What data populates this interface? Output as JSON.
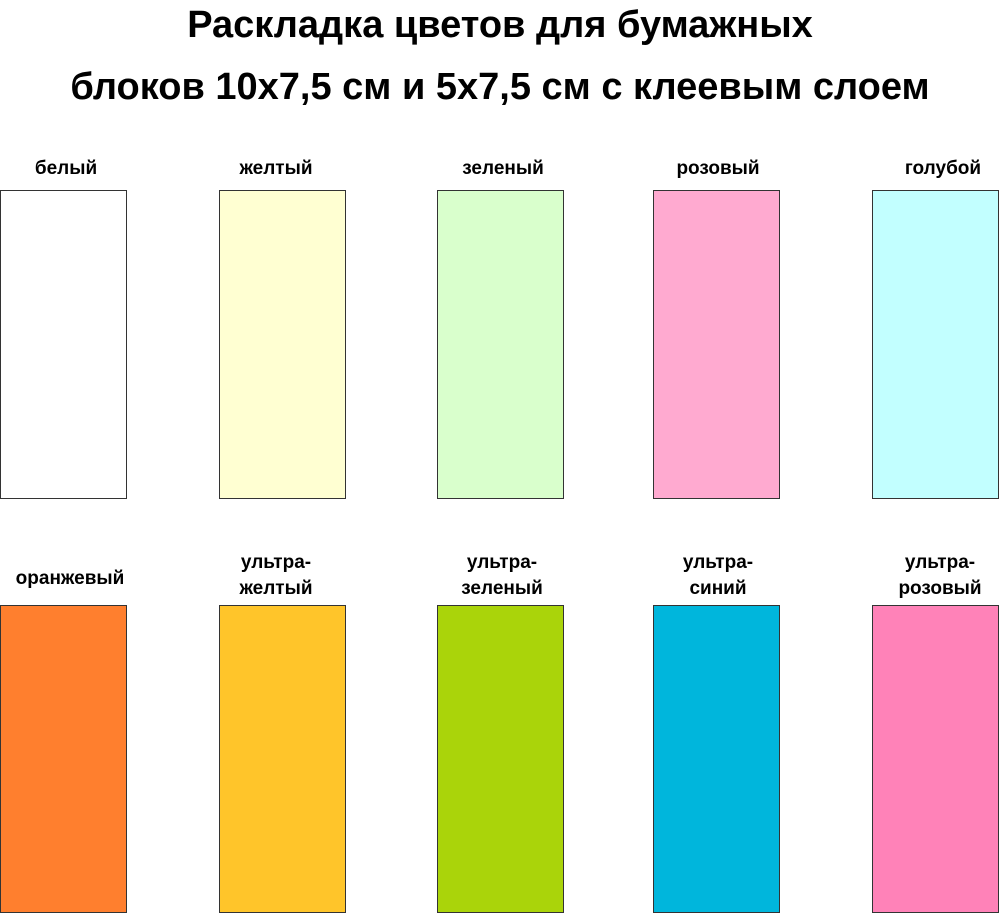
{
  "title": {
    "line1": "Раскладка цветов для бумажных",
    "line2": "блоков 10х7,5 см и 5х7,5 см с клеевым слоем"
  },
  "swatches": [
    {
      "label": "белый",
      "color": "#ffffff"
    },
    {
      "label": "желтый",
      "color": "#ffffd2"
    },
    {
      "label": "зеленый",
      "color": "#d9ffcc"
    },
    {
      "label": "розовый",
      "color": "#ffaad0"
    },
    {
      "label": "голубой",
      "color": "#c2ffff"
    },
    {
      "label": "оранжевый",
      "color": "#ff7f2e"
    },
    {
      "label": "ультра-\nжелтый",
      "color": "#ffc52a"
    },
    {
      "label": "ультра-\nзеленый",
      "color": "#aad40a"
    },
    {
      "label": "ультра-\nсиний",
      "color": "#00b6dc"
    },
    {
      "label": "ультра-\nрозовый",
      "color": "#ff82b8"
    }
  ]
}
